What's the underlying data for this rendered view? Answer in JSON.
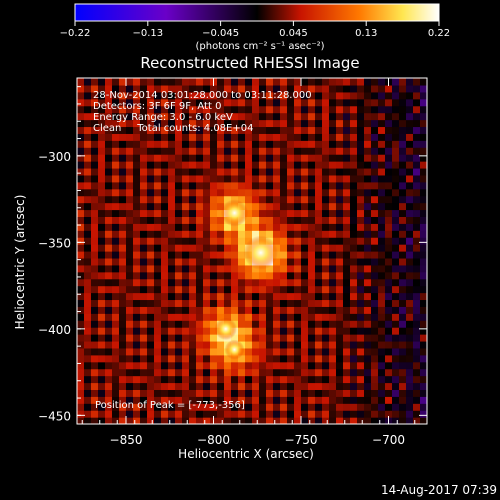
{
  "chart_data": {
    "type": "heatmap",
    "title": "Reconstructed RHESSI Image",
    "colorbar": {
      "ticks": [
        "-0.22",
        "-0.13",
        "-0.045",
        "0.045",
        "0.13",
        "0.22"
      ],
      "unit": "(photons cm⁻² s⁻¹ asec⁻²)",
      "range": [
        -0.22,
        0.22
      ],
      "colormap": [
        "#0000ff",
        "#6a00c8",
        "#000000",
        "#c81400",
        "#ff7800",
        "#ffe650",
        "#ffffff"
      ]
    },
    "annotations": [
      "28-Nov-2014 03:01:28.000 to 03:11:28.000",
      "Detectors: 3F 6F 9F, Att 0",
      "Energy Range: 3.0 - 6.0 keV",
      "Clean     Total counts: 4.08E+04"
    ],
    "peak_text": "Position of Peak = [-773,-356]",
    "xlabel": "Heliocentric X (arcsec)",
    "ylabel": "Heliocentric Y (arcsec)",
    "xlim": [
      -878,
      -678
    ],
    "ylim": [
      -455,
      -255
    ],
    "xticks": [
      {
        "value": -850,
        "label": "−850"
      },
      {
        "value": -800,
        "label": "−800"
      },
      {
        "value": -750,
        "label": "−750"
      },
      {
        "value": -700,
        "label": "−700"
      }
    ],
    "yticks": [
      {
        "value": -300,
        "label": "−300"
      },
      {
        "value": -350,
        "label": "−350"
      },
      {
        "value": -400,
        "label": "−400"
      },
      {
        "value": -450,
        "label": "−450"
      }
    ],
    "sources": [
      {
        "x": -773,
        "y": -356,
        "intensity": 0.22
      },
      {
        "x": -788,
        "y": -333,
        "intensity": 0.16
      },
      {
        "x": -793,
        "y": -400,
        "intensity": 0.12
      },
      {
        "x": -788,
        "y": -412,
        "intensity": 0.1
      }
    ],
    "background_level": 0.03
  },
  "footer": {
    "date": "14-Aug-2017 07:39"
  }
}
